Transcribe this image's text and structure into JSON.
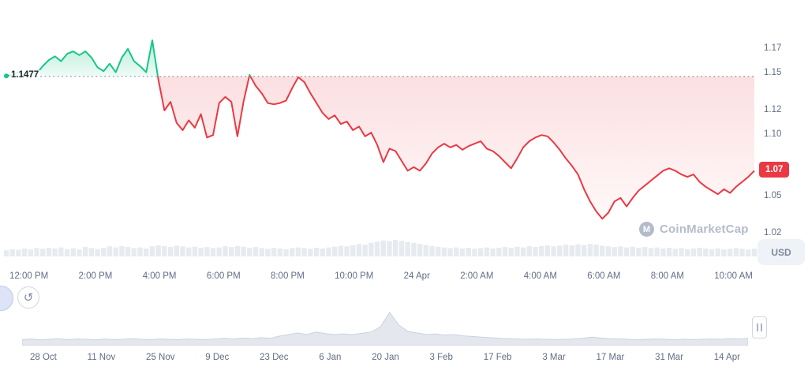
{
  "watermark": {
    "text": "CoinMarketCap"
  },
  "price_badge": {
    "text": "1.07"
  },
  "y_axis": {
    "currency": "USD"
  },
  "chart_data": {
    "type": "area",
    "title": "",
    "baseline_label": "1.1477",
    "baseline": 1.1477,
    "last_price": 1.071,
    "ylim": [
      1.02,
      1.19
    ],
    "colors": {
      "up": "#16c784",
      "down": "#ea3943",
      "volume": "#e7ebf0",
      "brush": "#e4e8ee"
    },
    "y_ticks": [
      {
        "label": "1.17",
        "value": 1.17
      },
      {
        "label": "1.15",
        "value": 1.15
      },
      {
        "label": "1.12",
        "value": 1.12
      },
      {
        "label": "1.10",
        "value": 1.1
      },
      {
        "label": "1.05",
        "value": 1.05
      },
      {
        "label": "1.02",
        "value": 1.02
      }
    ],
    "x_ticks": [
      "12:00 PM",
      "2:00 PM",
      "4:00 PM",
      "6:00 PM",
      "8:00 PM",
      "10:00 PM",
      "24 Apr",
      "2:00 AM",
      "4:00 AM",
      "6:00 AM",
      "8:00 AM",
      "10:00 AM"
    ],
    "prices": [
      1.148,
      1.149,
      1.151,
      1.148,
      1.152,
      1.15,
      1.156,
      1.161,
      1.164,
      1.16,
      1.166,
      1.168,
      1.165,
      1.168,
      1.163,
      1.155,
      1.152,
      1.158,
      1.151,
      1.163,
      1.17,
      1.16,
      1.156,
      1.151,
      1.177,
      1.145,
      1.12,
      1.127,
      1.11,
      1.104,
      1.112,
      1.106,
      1.117,
      1.098,
      1.1,
      1.126,
      1.131,
      1.127,
      1.099,
      1.127,
      1.149,
      1.14,
      1.134,
      1.126,
      1.125,
      1.126,
      1.128,
      1.138,
      1.147,
      1.143,
      1.134,
      1.126,
      1.118,
      1.113,
      1.116,
      1.109,
      1.111,
      1.104,
      1.107,
      1.099,
      1.102,
      1.092,
      1.078,
      1.089,
      1.087,
      1.079,
      1.071,
      1.074,
      1.071,
      1.077,
      1.085,
      1.09,
      1.093,
      1.09,
      1.092,
      1.088,
      1.091,
      1.093,
      1.095,
      1.089,
      1.087,
      1.083,
      1.078,
      1.073,
      1.081,
      1.09,
      1.095,
      1.098,
      1.1,
      1.099,
      1.094,
      1.088,
      1.081,
      1.075,
      1.068,
      1.056,
      1.046,
      1.038,
      1.032,
      1.037,
      1.046,
      1.049,
      1.042,
      1.049,
      1.055,
      1.059,
      1.063,
      1.067,
      1.071,
      1.073,
      1.071,
      1.068,
      1.066,
      1.068,
      1.062,
      1.058,
      1.055,
      1.052,
      1.056,
      1.053,
      1.058,
      1.062,
      1.066,
      1.071
    ],
    "volume": [
      0.35,
      0.42,
      0.38,
      0.45,
      0.4,
      0.48,
      0.44,
      0.5,
      0.46,
      0.52,
      0.42,
      0.47,
      0.4,
      0.55,
      0.48,
      0.43,
      0.5,
      0.58,
      0.52,
      0.6,
      0.55,
      0.48,
      0.52,
      0.46,
      0.58,
      0.65,
      0.6,
      0.55,
      0.62,
      0.58,
      0.52,
      0.56,
      0.5,
      0.54,
      0.48,
      0.52,
      0.58,
      0.54,
      0.6,
      0.56,
      0.5,
      0.54,
      0.48,
      0.44,
      0.5,
      0.46,
      0.42,
      0.48,
      0.52,
      0.48,
      0.44,
      0.5,
      0.46,
      0.52,
      0.56,
      0.62,
      0.58,
      0.66,
      0.72,
      0.68,
      0.78,
      0.85,
      0.92,
      0.88,
      0.95,
      0.9,
      0.84,
      0.78,
      0.72,
      0.66,
      0.6,
      0.56,
      0.52,
      0.48,
      0.52,
      0.46,
      0.5,
      0.44,
      0.48,
      0.52,
      0.46,
      0.5,
      0.54,
      0.5,
      0.56,
      0.52,
      0.58,
      0.54,
      0.6,
      0.64,
      0.58,
      0.62,
      0.68,
      0.64,
      0.7,
      0.66,
      0.72,
      0.68,
      0.62,
      0.58,
      0.54,
      0.58,
      0.52,
      0.56,
      0.5,
      0.54,
      0.48,
      0.52,
      0.46,
      0.5,
      0.44,
      0.48,
      0.42,
      0.46,
      0.5,
      0.46,
      0.42,
      0.46,
      0.4,
      0.44,
      0.48,
      0.44,
      0.4,
      0.45
    ],
    "range_selector": {
      "ticks": [
        "28 Oct",
        "11 Nov",
        "25 Nov",
        "9 Dec",
        "23 Dec",
        "6 Jan",
        "20 Jan",
        "3 Feb",
        "17 Feb",
        "3 Mar",
        "17 Mar",
        "31 Mar",
        "14 Apr"
      ],
      "profile": [
        0.14,
        0.16,
        0.13,
        0.15,
        0.17,
        0.14,
        0.16,
        0.15,
        0.13,
        0.16,
        0.14,
        0.15,
        0.17,
        0.15,
        0.14,
        0.16,
        0.15,
        0.14,
        0.16,
        0.15,
        0.14,
        0.16,
        0.18,
        0.16,
        0.19,
        0.17,
        0.2,
        0.18,
        0.25,
        0.3,
        0.35,
        0.3,
        0.38,
        0.33,
        0.3,
        0.32,
        0.3,
        0.34,
        0.38,
        0.55,
        1.0,
        0.6,
        0.4,
        0.35,
        0.3,
        0.32,
        0.28,
        0.3,
        0.26,
        0.24,
        0.22,
        0.2,
        0.18,
        0.17,
        0.16,
        0.15,
        0.16,
        0.15,
        0.14,
        0.15,
        0.16,
        0.18,
        0.22,
        0.19,
        0.17,
        0.16,
        0.15,
        0.14,
        0.15,
        0.16,
        0.15,
        0.14,
        0.15,
        0.14,
        0.15,
        0.16,
        0.15,
        0.17,
        0.16,
        0.18
      ]
    }
  }
}
